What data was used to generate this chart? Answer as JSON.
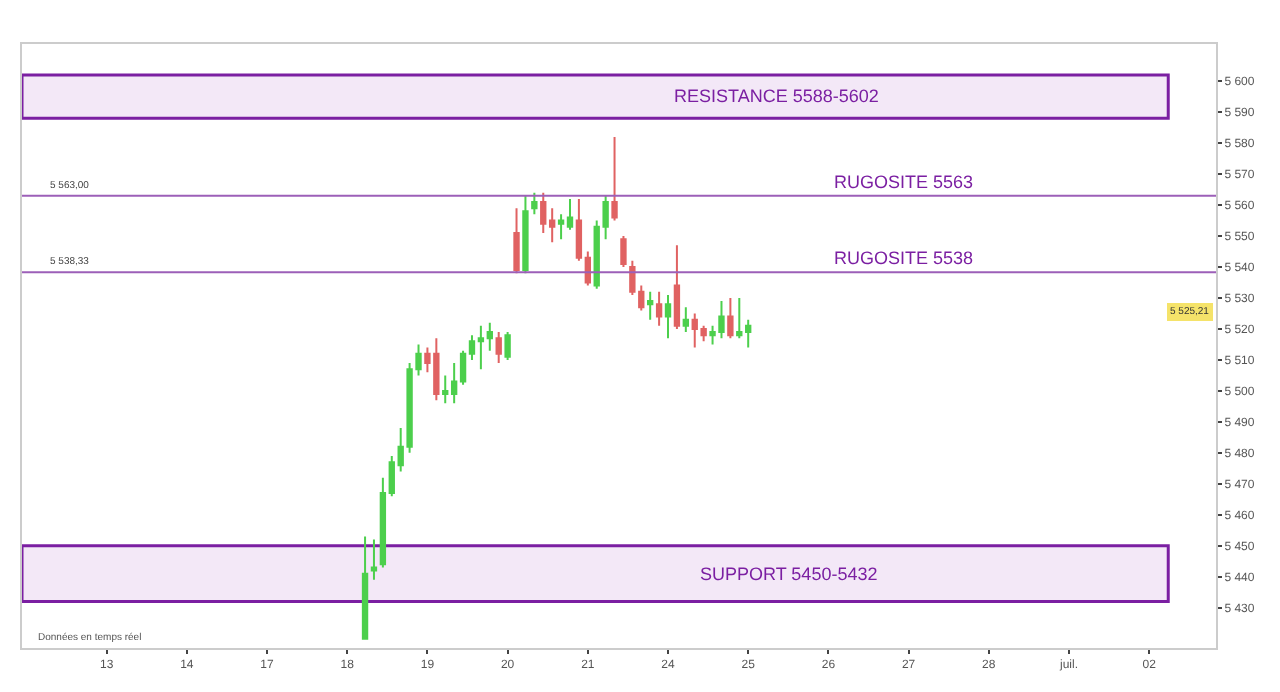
{
  "chart_data": {
    "type": "candlestick",
    "categories": [
      null,
      null,
      null,
      null,
      null,
      null,
      null,
      null,
      null,
      "13",
      null,
      null,
      null,
      null,
      null,
      null,
      null,
      null,
      "14",
      null,
      null,
      null,
      null,
      null,
      null,
      null,
      null,
      "17",
      null,
      null,
      null,
      null,
      null,
      null,
      null,
      null,
      "18",
      null,
      null,
      null,
      null,
      null,
      null,
      null,
      null,
      "19",
      null,
      null,
      null,
      null,
      null,
      null,
      null,
      null,
      "20",
      null,
      null,
      null,
      null,
      null,
      null,
      null,
      null,
      "21",
      null,
      null,
      null,
      null,
      null,
      null,
      null,
      null,
      "24",
      null,
      null,
      null,
      null,
      null,
      null,
      null,
      null,
      "25",
      null,
      null,
      null,
      null,
      null,
      null,
      null,
      null,
      "26",
      null,
      null,
      null,
      null,
      null,
      null,
      null,
      null,
      "27",
      null,
      null,
      null,
      null,
      null,
      null,
      null,
      null,
      "28",
      null,
      null,
      null,
      null,
      null,
      null,
      null,
      null,
      "juil.",
      null,
      null,
      null,
      null,
      null,
      null,
      null,
      null,
      "02",
      null,
      null,
      null,
      null,
      null,
      null,
      null
    ],
    "ohlc": [
      null,
      null,
      null,
      null,
      null,
      null,
      null,
      null,
      null,
      null,
      null,
      null,
      null,
      null,
      null,
      null,
      null,
      null,
      null,
      null,
      null,
      null,
      null,
      null,
      null,
      null,
      null,
      null,
      null,
      null,
      null,
      null,
      null,
      null,
      null,
      null,
      null,
      null,
      [
        5420,
        5453,
        5420,
        5441
      ],
      [
        5442,
        5452,
        5439,
        5443
      ],
      [
        5444,
        5472,
        5443,
        5467
      ],
      [
        5467,
        5479,
        5466,
        5477
      ],
      [
        5476,
        5488,
        5474,
        5482
      ],
      [
        5482,
        5509,
        5480,
        5507
      ],
      [
        5507,
        5515,
        5505,
        5512
      ],
      [
        5512,
        5514,
        5506,
        5509
      ],
      [
        5512,
        5517,
        5497,
        5499
      ],
      [
        5499,
        5505,
        5496,
        5500
      ],
      [
        5499,
        5509,
        5496,
        5503
      ],
      [
        5503,
        5513,
        5502,
        5512
      ],
      [
        5512,
        5518,
        5510,
        5516
      ],
      [
        5516,
        5521,
        5507,
        5517
      ],
      [
        5517,
        5522,
        5513,
        5519
      ],
      [
        5517,
        5519,
        5509,
        5512
      ],
      [
        5511,
        5519,
        5510,
        5518
      ],
      [
        5551,
        5559,
        5538,
        5539
      ],
      [
        5539,
        5563,
        5538,
        5558
      ],
      [
        5559,
        5564,
        5557,
        5561
      ],
      [
        5561,
        5564,
        5551,
        5554
      ],
      [
        5555,
        5559,
        5548,
        5553
      ],
      [
        5554,
        5557,
        5549,
        5555
      ],
      [
        5553,
        5562,
        5552,
        5556
      ],
      [
        5555,
        5562,
        5542,
        5543
      ],
      [
        5543,
        5545,
        5534,
        5535
      ],
      [
        5534,
        5555,
        5533,
        5553
      ],
      [
        5553,
        5563,
        5549,
        5561
      ],
      [
        5561,
        5582,
        5555,
        5556
      ],
      [
        5549,
        5550,
        5540,
        5541
      ],
      [
        5540,
        5542,
        5531,
        5532
      ],
      [
        5532,
        5534,
        5526,
        5527
      ],
      [
        5528,
        5532,
        5523,
        5529
      ],
      [
        5528,
        5532,
        5521,
        5524
      ],
      [
        5524,
        5531,
        5517,
        5528
      ],
      [
        5534,
        5547,
        5520,
        5521
      ],
      [
        5521,
        5527,
        5519,
        5523
      ],
      [
        5523,
        5525,
        5514,
        5520
      ],
      [
        5520,
        5521,
        5516,
        5518
      ],
      [
        5518,
        5521,
        5515,
        5519
      ],
      [
        5519,
        5529,
        5517,
        5524
      ],
      [
        5524,
        5530,
        5517,
        5518
      ],
      [
        5518,
        5530,
        5517,
        5519
      ],
      [
        5519,
        5523,
        5514,
        5521
      ],
      null,
      null,
      null,
      null,
      null,
      null,
      null,
      null,
      null,
      null,
      null,
      null,
      null,
      null,
      null,
      null,
      null,
      null,
      null,
      null,
      null,
      null,
      null,
      null,
      null,
      null,
      null,
      null,
      null,
      null,
      null,
      null,
      null,
      null,
      null,
      null,
      null,
      null,
      null,
      null,
      null,
      null,
      null,
      null,
      null,
      null,
      null,
      null,
      null,
      null,
      null,
      null
    ],
    "colors": [
      null,
      null,
      null,
      null,
      null,
      null,
      null,
      null,
      null,
      null,
      null,
      null,
      null,
      null,
      null,
      null,
      null,
      null,
      null,
      null,
      null,
      null,
      null,
      null,
      null,
      null,
      null,
      null,
      null,
      null,
      null,
      null,
      null,
      null,
      null,
      null,
      null,
      null,
      "#4ccf4c",
      "#4ccf4c",
      "#4ccf4c",
      "#4ccf4c",
      "#4ccf4c",
      "#4ccf4c",
      "#4ccf4c",
      "#e06262",
      "#e06262",
      "#4ccf4c",
      "#4ccf4c",
      "#4ccf4c",
      "#4ccf4c",
      "#4ccf4c",
      "#4ccf4c",
      "#e06262",
      "#4ccf4c",
      "#e06262",
      "#4ccf4c",
      "#4ccf4c",
      "#e06262",
      "#e06262",
      "#4ccf4c",
      "#4ccf4c",
      "#e06262",
      "#e06262",
      "#4ccf4c",
      "#4ccf4c",
      "#e06262",
      "#e06262",
      "#e06262",
      "#e06262",
      "#4ccf4c",
      "#e06262",
      "#4ccf4c",
      "#e06262",
      "#4ccf4c",
      "#e06262",
      "#e06262",
      "#4ccf4c",
      "#4ccf4c",
      "#e06262",
      "#4ccf4c",
      "#4ccf4c",
      null,
      null,
      null,
      null,
      null,
      null,
      null,
      null,
      null,
      null,
      null,
      null,
      null,
      null,
      null,
      null,
      null,
      null,
      null,
      null,
      null,
      null,
      null,
      null,
      null,
      null,
      null,
      null,
      null,
      null,
      null,
      null,
      null,
      null,
      null,
      null,
      null,
      null,
      null,
      null,
      null,
      null,
      null,
      null,
      null,
      null,
      null,
      null,
      null,
      null,
      null,
      null
    ],
    "ylim": [
      5417,
      5612
    ],
    "yticks": [
      {
        "value": 5600,
        "label": "5 600"
      },
      {
        "value": 5590,
        "label": "5 590"
      },
      {
        "value": 5580,
        "label": "5 580"
      },
      {
        "value": 5570,
        "label": "5 570"
      },
      {
        "value": 5560,
        "label": "5 560"
      },
      {
        "value": 5550,
        "label": "5 550"
      },
      {
        "value": 5540,
        "label": "5 540"
      },
      {
        "value": 5530,
        "label": "5 530"
      },
      {
        "value": 5520,
        "label": "5 520"
      },
      {
        "value": 5510,
        "label": "5 510"
      },
      {
        "value": 5500,
        "label": "5 500"
      },
      {
        "value": 5490,
        "label": "5 490"
      },
      {
        "value": 5480,
        "label": "5 480"
      },
      {
        "value": 5470,
        "label": "5 470"
      },
      {
        "value": 5460,
        "label": "5 460"
      },
      {
        "value": 5450,
        "label": "5 450"
      },
      {
        "value": 5440,
        "label": "5 440"
      },
      {
        "value": 5430,
        "label": "5 430"
      }
    ],
    "bands": [
      {
        "axis": "y",
        "from": 5588,
        "to": 5602,
        "label": "RESISTANCE 5588-5602",
        "color": "#7b1fa2"
      },
      {
        "axis": "y",
        "from": 5432,
        "to": 5450,
        "label": "SUPPORT 5450-5432",
        "color": "#7b1fa2"
      }
    ],
    "ref_lines": [
      {
        "axis": "y",
        "value": 5563,
        "label": "RUGOSITE 5563",
        "color": "#9c5fb8"
      },
      {
        "axis": "y",
        "value": 5538.33,
        "label": "RUGOSITE 5538",
        "color": "#9c5fb8"
      }
    ],
    "annotations": [
      "5 563,00",
      "5 538,33",
      "5 525,21",
      "Données en temps réel"
    ],
    "grid": false
  }
}
